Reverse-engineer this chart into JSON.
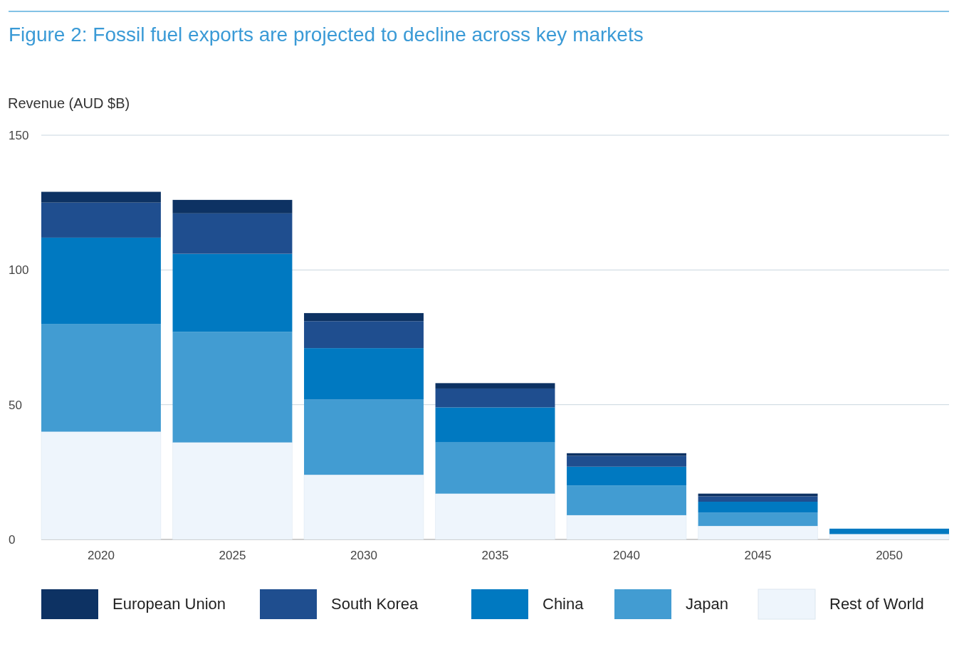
{
  "chart_data": {
    "type": "bar",
    "title": "Figure 2: Fossil fuel exports are projected to decline across key markets",
    "ylabel": "Revenue (AUD $B)",
    "categories": [
      "2020",
      "2025",
      "2030",
      "2035",
      "2040",
      "2045",
      "2050"
    ],
    "stacked": true,
    "ylim": [
      0,
      150
    ],
    "yticks": [
      0,
      50,
      100,
      150
    ],
    "grid": "y",
    "legend": "bottom",
    "series": [
      {
        "name": "Rest of World",
        "color": "#eef5fc",
        "values": [
          40,
          36,
          24,
          17,
          9,
          5,
          2
        ]
      },
      {
        "name": "Japan",
        "color": "#429cd2",
        "values": [
          40,
          41,
          28,
          19,
          11,
          5,
          0
        ]
      },
      {
        "name": "China",
        "color": "#0079c1",
        "values": [
          32,
          29,
          19,
          13,
          7,
          4,
          2
        ]
      },
      {
        "name": "South Korea",
        "color": "#1f4e8f",
        "values": [
          13,
          15,
          10,
          7,
          4,
          2,
          0
        ]
      },
      {
        "name": "European Union",
        "color": "#0d3263",
        "values": [
          4,
          5,
          3,
          2,
          1,
          1,
          0
        ]
      }
    ]
  }
}
